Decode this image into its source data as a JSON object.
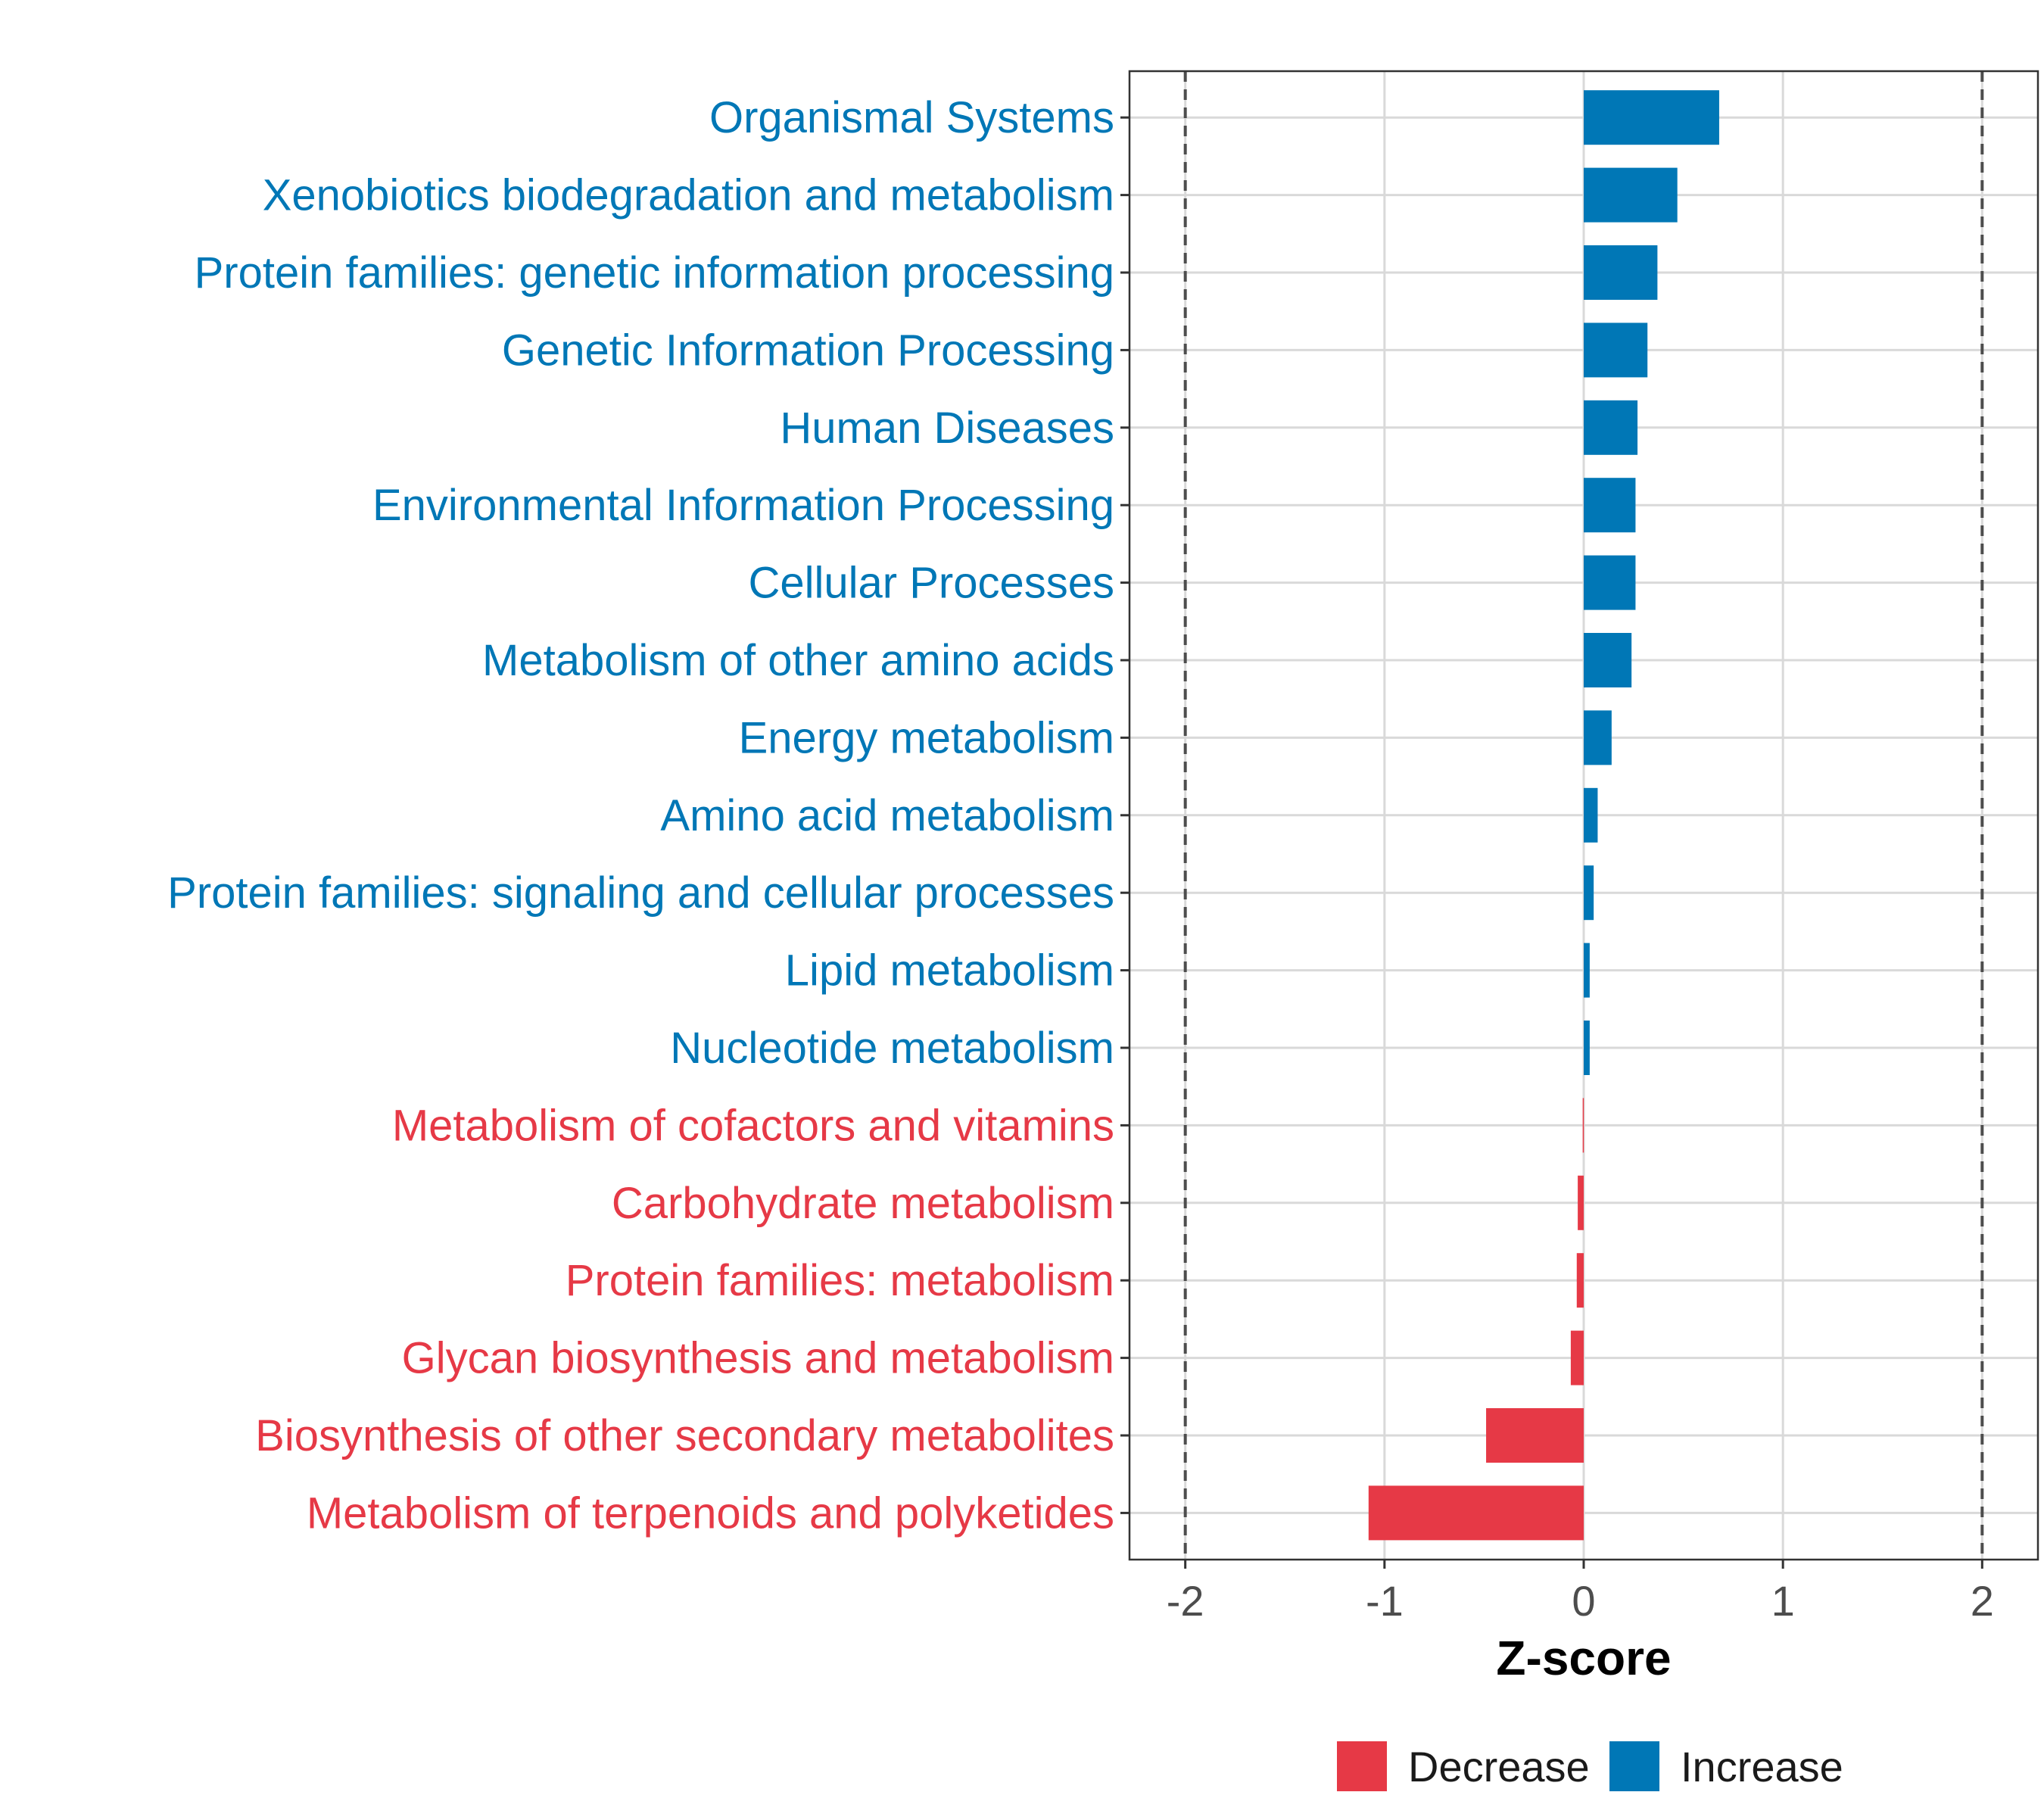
{
  "chart_data": {
    "type": "bar",
    "orientation": "horizontal",
    "categories": [
      "Organismal Systems",
      "Xenobiotics biodegradation and metabolism",
      "Protein families: genetic information processing",
      "Genetic Information Processing",
      "Human Diseases",
      "Environmental Information Processing",
      "Cellular Processes",
      "Metabolism of other amino acids",
      "Energy metabolism",
      "Amino acid metabolism",
      "Protein families: signaling and cellular processes",
      "Lipid metabolism",
      "Nucleotide metabolism",
      "Metabolism of cofactors and vitamins",
      "Carbohydrate metabolism",
      "Protein families: metabolism",
      "Glycan biosynthesis and metabolism",
      "Biosynthesis of other secondary metabolites",
      "Metabolism of terpenoids and polyketides"
    ],
    "values": [
      0.68,
      0.47,
      0.37,
      0.32,
      0.27,
      0.26,
      0.26,
      0.24,
      0.14,
      0.07,
      0.05,
      0.03,
      0.03,
      -0.005,
      -0.03,
      -0.035,
      -0.065,
      -0.49,
      -1.08
    ],
    "groups": [
      "Increase",
      "Increase",
      "Increase",
      "Increase",
      "Increase",
      "Increase",
      "Increase",
      "Increase",
      "Increase",
      "Increase",
      "Increase",
      "Increase",
      "Increase",
      "Decrease",
      "Decrease",
      "Decrease",
      "Decrease",
      "Decrease",
      "Decrease"
    ],
    "xlabel": "Z-score",
    "ylabel": "",
    "xlim": [
      -2.28,
      2.28
    ],
    "xticks": [
      -2,
      -1,
      0,
      1,
      2
    ],
    "xtick_labels": [
      "-2",
      "-1",
      "0",
      "1",
      "2"
    ],
    "reference_lines": [
      -2,
      2
    ],
    "grid": true,
    "legend": {
      "position": "bottom",
      "items": [
        {
          "label": "Decrease",
          "color": "#E63946"
        },
        {
          "label": "Increase",
          "color": "#0077B6"
        }
      ]
    },
    "colors": {
      "Decrease": "#E63946",
      "Increase": "#0077B6"
    }
  }
}
